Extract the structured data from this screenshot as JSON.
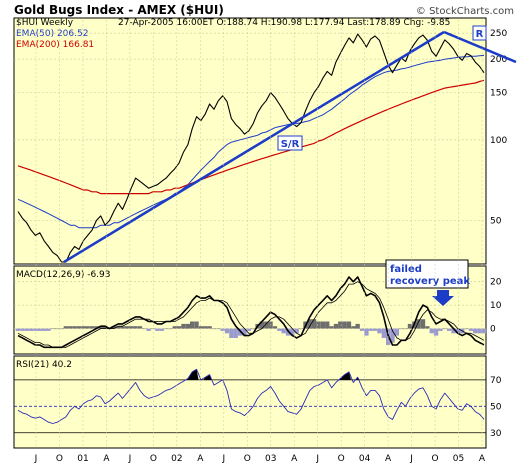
{
  "header": {
    "title": "Gold Bugs Index - AMEX ($HUI)",
    "watermark": "© StockCharts.com",
    "series_label": "$HUI Weekly",
    "info_line": "27-Apr-2005 16:00ET  O:188.74  H:190.98  L:177.94  Last:178.89  Chg: -9.85",
    "ema50_label": "EMA(50) 206.52",
    "ema200_label": "EMA(200) 166.81"
  },
  "colors": {
    "panel_bg": "#FFFFC8",
    "price": "#000000",
    "ema50": "#1C3CC8",
    "ema200": "#CC0000",
    "trendline": "#1C3CC8",
    "macd_hist": "#6E6E6E",
    "macd_hist_neg": "#9A9ACF",
    "rsi_line": "#2A2AB8",
    "chg_negative": "#CC0000"
  },
  "annotations": {
    "sr_label": "S/R",
    "r_label": "R",
    "failed_peak_line1": "failed",
    "failed_peak_line2": "recovery peak"
  },
  "chart_data": [
    {
      "type": "line",
      "name": "price",
      "y_scale": "log",
      "ylim": [
        35,
        280
      ],
      "yticks": [
        50,
        100,
        150,
        200,
        250
      ],
      "x_ticks": [
        "J",
        "O",
        "01",
        "A",
        "J",
        "O",
        "02",
        "A",
        "J",
        "O",
        "03",
        "A",
        "J",
        "O",
        "04",
        "A",
        "J",
        "O",
        "05",
        "A"
      ],
      "series": [
        {
          "name": "$HUI",
          "values": [
            54,
            51,
            49,
            46,
            44,
            45,
            42,
            40,
            38,
            37,
            35,
            35,
            38,
            40,
            39,
            42,
            44,
            46,
            50,
            52,
            48,
            50,
            54,
            58,
            55,
            60,
            66,
            72,
            70,
            68,
            66,
            67,
            68,
            70,
            72,
            75,
            78,
            82,
            90,
            96,
            110,
            122,
            118,
            125,
            136,
            130,
            140,
            146,
            139,
            120,
            114,
            110,
            105,
            108,
            115,
            126,
            134,
            140,
            150,
            144,
            136,
            128,
            120,
            115,
            112,
            116,
            128,
            140,
            150,
            158,
            170,
            180,
            174,
            195,
            210,
            225,
            240,
            230,
            248,
            236,
            222,
            238,
            244,
            235,
            212,
            190,
            178,
            190,
            202,
            196,
            215,
            228,
            240,
            246,
            235,
            214,
            205,
            220,
            236,
            228,
            218,
            205,
            198,
            210,
            206,
            195,
            188,
            178
          ]
        },
        {
          "name": "EMA(50)",
          "values": [
            60,
            59,
            58,
            57,
            56,
            55,
            54,
            53,
            52,
            51,
            50,
            49,
            48,
            48,
            47,
            47,
            47,
            47,
            47,
            48,
            48,
            48,
            49,
            49,
            50,
            51,
            52,
            53,
            54,
            55,
            56,
            57,
            58,
            59,
            60,
            61,
            63,
            64,
            66,
            68,
            71,
            74,
            77,
            80,
            83,
            86,
            90,
            93,
            96,
            98,
            99,
            100,
            101,
            102,
            103,
            104,
            106,
            107,
            109,
            111,
            112,
            113,
            114,
            115,
            115,
            116,
            117,
            118,
            120,
            122,
            124,
            127,
            130,
            134,
            138,
            142,
            147,
            151,
            155,
            160,
            164,
            168,
            172,
            175,
            178,
            180,
            181,
            182,
            184,
            185,
            187,
            189,
            191,
            193,
            195,
            196,
            197,
            198,
            200,
            201,
            202,
            203,
            204,
            204,
            205,
            205,
            206,
            206.52
          ]
        },
        {
          "name": "EMA(200)",
          "values": [
            80,
            79,
            78,
            77,
            76,
            75,
            74,
            73,
            72,
            71,
            70,
            69,
            68,
            67,
            66,
            65,
            65,
            64,
            64,
            63,
            63,
            63,
            63,
            63,
            63,
            63,
            63,
            63,
            63,
            63,
            63,
            64,
            64,
            64,
            65,
            65,
            66,
            66,
            67,
            68,
            69,
            70,
            71,
            72,
            73,
            74,
            75,
            76,
            77,
            78,
            79,
            80,
            81,
            82,
            83,
            84,
            85,
            86,
            87,
            88,
            89,
            90,
            91,
            92,
            93,
            94,
            95,
            96,
            97,
            99,
            100,
            102,
            104,
            106,
            108,
            110,
            112,
            114,
            116,
            118,
            120,
            122,
            124,
            126,
            128,
            130,
            132,
            134,
            136,
            138,
            140,
            142,
            144,
            146,
            148,
            150,
            152,
            154,
            156,
            157,
            158,
            159,
            160,
            161,
            162,
            163,
            165,
            166.81
          ]
        }
      ]
    },
    {
      "type": "line",
      "name": "MACD(12,26,9) -6.93",
      "ylim": [
        -10,
        25
      ],
      "yticks": [
        0,
        10,
        20
      ],
      "series": [
        {
          "name": "MACD",
          "values": [
            -3,
            -4,
            -5,
            -6,
            -7,
            -7,
            -8,
            -8,
            -8,
            -8,
            -8,
            -7,
            -6,
            -5,
            -4,
            -3,
            -2,
            -1,
            0,
            1,
            1,
            0,
            1,
            2,
            2,
            3,
            4,
            5,
            5,
            4,
            3,
            3,
            2,
            2,
            3,
            3,
            4,
            5,
            7,
            9,
            12,
            14,
            13,
            13,
            14,
            12,
            12,
            11,
            9,
            4,
            1,
            -1,
            -3,
            -3,
            -2,
            1,
            3,
            5,
            7,
            6,
            4,
            2,
            -1,
            -3,
            -4,
            -3,
            1,
            5,
            8,
            10,
            12,
            14,
            12,
            14,
            17,
            19,
            22,
            20,
            22,
            18,
            14,
            15,
            14,
            11,
            5,
            -3,
            -7,
            -7,
            -5,
            -5,
            -2,
            2,
            7,
            10,
            9,
            5,
            2,
            3,
            4,
            2,
            0,
            -2,
            -3,
            -2,
            -3,
            -5,
            -6,
            -6.93
          ]
        },
        {
          "name": "Signal",
          "values": [
            -2,
            -3,
            -4,
            -5,
            -6,
            -6,
            -7,
            -7,
            -8,
            -8,
            -8,
            -8,
            -7,
            -6,
            -5,
            -4,
            -3,
            -2,
            -1,
            0,
            0,
            0,
            0,
            1,
            1,
            2,
            3,
            4,
            4,
            4,
            4,
            3,
            3,
            3,
            3,
            3,
            3,
            4,
            5,
            7,
            9,
            11,
            12,
            12,
            13,
            12,
            12,
            12,
            11,
            8,
            5,
            2,
            0,
            -2,
            -2,
            -1,
            0,
            2,
            4,
            5,
            5,
            4,
            2,
            0,
            -2,
            -3,
            -2,
            1,
            4,
            7,
            9,
            11,
            11,
            12,
            14,
            16,
            19,
            19,
            20,
            19,
            17,
            16,
            15,
            13,
            9,
            4,
            -1,
            -4,
            -5,
            -5,
            -4,
            -1,
            3,
            6,
            8,
            7,
            5,
            4,
            4,
            3,
            2,
            0,
            -1,
            -2,
            -2,
            -3,
            -4,
            -5
          ]
        },
        {
          "name": "Histogram",
          "values": [
            -1,
            -1,
            -1,
            -1,
            -1,
            -1,
            -1,
            -1,
            0,
            0,
            0,
            1,
            1,
            1,
            1,
            1,
            1,
            1,
            1,
            1,
            1,
            0,
            1,
            1,
            1,
            1,
            1,
            1,
            1,
            0,
            -1,
            0,
            -1,
            -1,
            0,
            0,
            1,
            1,
            2,
            2,
            3,
            3,
            1,
            1,
            1,
            0,
            0,
            -1,
            -2,
            -4,
            -4,
            -3,
            -3,
            -1,
            0,
            2,
            3,
            3,
            3,
            1,
            -1,
            -2,
            -3,
            -3,
            -2,
            0,
            3,
            4,
            4,
            3,
            3,
            3,
            1,
            2,
            3,
            3,
            3,
            1,
            2,
            -1,
            -3,
            -1,
            -1,
            -2,
            -4,
            -7,
            -6,
            -3,
            0,
            0,
            2,
            3,
            4,
            4,
            1,
            -2,
            -3,
            -1,
            0,
            -1,
            -2,
            -2,
            -2,
            0,
            -1,
            -2,
            -2,
            -2
          ]
        }
      ]
    },
    {
      "type": "line",
      "name": "RSI(21) 40.2",
      "ylim": [
        20,
        85
      ],
      "yticks": [
        30,
        50,
        70
      ],
      "series": [
        {
          "name": "RSI",
          "values": [
            47,
            45,
            44,
            42,
            41,
            42,
            40,
            38,
            37,
            38,
            40,
            42,
            47,
            50,
            48,
            52,
            54,
            55,
            58,
            57,
            52,
            54,
            57,
            60,
            56,
            60,
            64,
            68,
            62,
            58,
            56,
            57,
            58,
            60,
            62,
            63,
            65,
            67,
            69,
            71,
            76,
            78,
            70,
            72,
            74,
            66,
            68,
            70,
            62,
            48,
            46,
            45,
            43,
            46,
            50,
            56,
            60,
            62,
            65,
            60,
            54,
            50,
            46,
            45,
            44,
            48,
            55,
            62,
            65,
            66,
            68,
            70,
            64,
            68,
            71,
            74,
            76,
            68,
            72,
            64,
            58,
            62,
            62,
            58,
            48,
            42,
            40,
            47,
            53,
            50,
            56,
            60,
            63,
            64,
            58,
            50,
            48,
            55,
            60,
            56,
            52,
            48,
            47,
            52,
            50,
            46,
            44,
            40.2
          ]
        }
      ]
    }
  ]
}
